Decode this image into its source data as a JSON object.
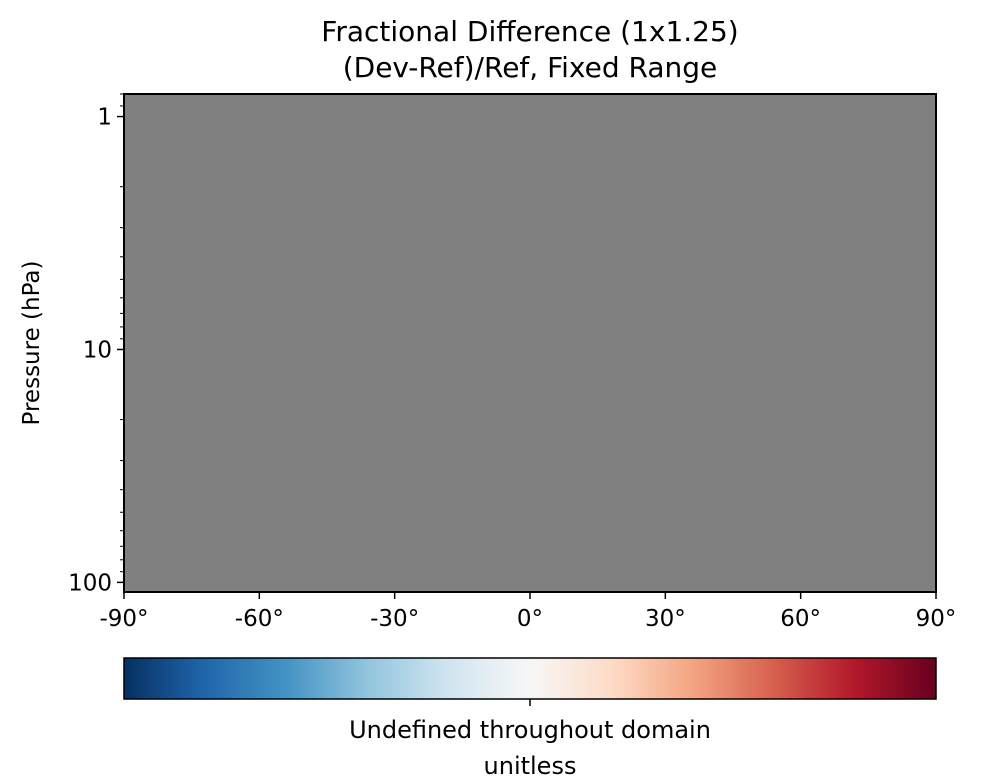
{
  "chart_data": {
    "type": "heatmap",
    "title": "Fractional Difference (1x1.25)",
    "subtitle": "(Dev-Ref)/Ref, Fixed Range",
    "ylabel": "Pressure (hPa)",
    "xlabel": "",
    "x_scale": "linear",
    "y_scale": "log",
    "y_inverted": true,
    "xlim": [
      -90,
      90
    ],
    "ylim": [
      110,
      0.8
    ],
    "x_ticks": [
      -90,
      -60,
      -30,
      0,
      30,
      60,
      90
    ],
    "x_tick_labels": [
      "-90°",
      "-60°",
      "-30°",
      "0°",
      "30°",
      "60°",
      "90°"
    ],
    "y_ticks": [
      1,
      10,
      100
    ],
    "y_tick_labels": [
      "1",
      "10",
      "100"
    ],
    "field_color": "#808080",
    "colorbar": {
      "colormap": "RdBu_r",
      "orientation": "horizontal",
      "ticks": [
        0
      ],
      "label_line1": "Undefined throughout domain",
      "label_line2": "unitless",
      "colors": [
        "#053061",
        "#2166ac",
        "#4393c3",
        "#92c5de",
        "#d1e5f0",
        "#f7f7f7",
        "#fddbc7",
        "#f4a582",
        "#d6604d",
        "#b2182b",
        "#67001f"
      ]
    }
  }
}
